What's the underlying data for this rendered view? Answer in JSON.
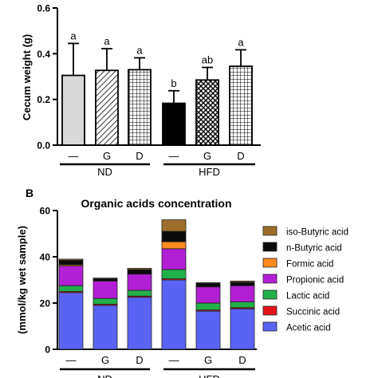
{
  "chart_data": [
    {
      "type": "bar",
      "panel_label": "",
      "title": "",
      "ylabel": "Cecum weight (g)",
      "ylim": [
        0,
        0.6
      ],
      "yticks": [
        "0.0",
        "0.2",
        "0.4",
        "0.6"
      ],
      "categories": [
        "—",
        "G",
        "D",
        "—",
        "G",
        "D"
      ],
      "groups": [
        {
          "label": "ND",
          "categories": [
            0,
            1,
            2
          ]
        },
        {
          "label": "HFD",
          "categories": [
            3,
            4,
            5
          ]
        }
      ],
      "values": [
        0.305,
        0.327,
        0.33,
        0.183,
        0.285,
        0.345
      ],
      "errors": [
        0.14,
        0.095,
        0.052,
        0.055,
        0.055,
        0.072
      ],
      "significance": [
        "a",
        "a",
        "a",
        "b",
        "ab",
        "a"
      ],
      "bar_styles": [
        "solid",
        "diagonal",
        "grid",
        "solid",
        "crosshatch",
        "grid"
      ],
      "bar_fills": [
        "#d9d9d9",
        "#ffffff",
        "#ffffff",
        "#000000",
        "#ffffff",
        "#ffffff"
      ]
    },
    {
      "type": "bar",
      "stacked": true,
      "panel_label": "B",
      "title": "Organic acids concentration",
      "ylabel": "(mmol/kg wet sample)",
      "ylim": [
        0,
        60
      ],
      "yticks": [
        "0",
        "20",
        "40",
        "60"
      ],
      "categories": [
        "—",
        "G",
        "D",
        "—",
        "G",
        "D"
      ],
      "groups": [
        {
          "label": "ND",
          "categories": [
            0,
            1,
            2
          ]
        },
        {
          "label": "HFD",
          "categories": [
            3,
            4,
            5
          ]
        }
      ],
      "legend_position": "right",
      "series": [
        {
          "name": "Acetic acid",
          "color": "#5b63f5",
          "values": [
            24.5,
            19.0,
            22.5,
            30.0,
            16.5,
            17.5
          ]
        },
        {
          "name": "Succinic acid",
          "color": "#e8141c",
          "values": [
            0.5,
            0.5,
            0.5,
            0.5,
            0.5,
            0.5
          ]
        },
        {
          "name": "Lactic acid",
          "color": "#22b04a",
          "values": [
            2.5,
            2.5,
            2.5,
            4.0,
            3.0,
            2.5
          ]
        },
        {
          "name": "Propionic acid",
          "color": "#b21fd4",
          "values": [
            8.5,
            7.5,
            7.0,
            9.0,
            7.0,
            7.0
          ]
        },
        {
          "name": "Formic acid",
          "color": "#ff8a1f",
          "values": [
            0.5,
            0.0,
            0.0,
            3.0,
            0.0,
            0.0
          ]
        },
        {
          "name": "n-Butyric acid",
          "color": "#0a0a0a",
          "values": [
            2.0,
            1.0,
            2.0,
            4.5,
            1.5,
            1.5
          ]
        },
        {
          "name": "iso-Butyric acid",
          "color": "#9c6e2a",
          "values": [
            0.5,
            0.3,
            0.5,
            5.0,
            0.3,
            0.5
          ]
        }
      ],
      "legend_order": [
        "iso-Butyric acid",
        "n-Butyric acid",
        "Formic acid",
        "Propionic acid",
        "Lactic acid",
        "Succinic acid",
        "Acetic acid"
      ]
    }
  ]
}
